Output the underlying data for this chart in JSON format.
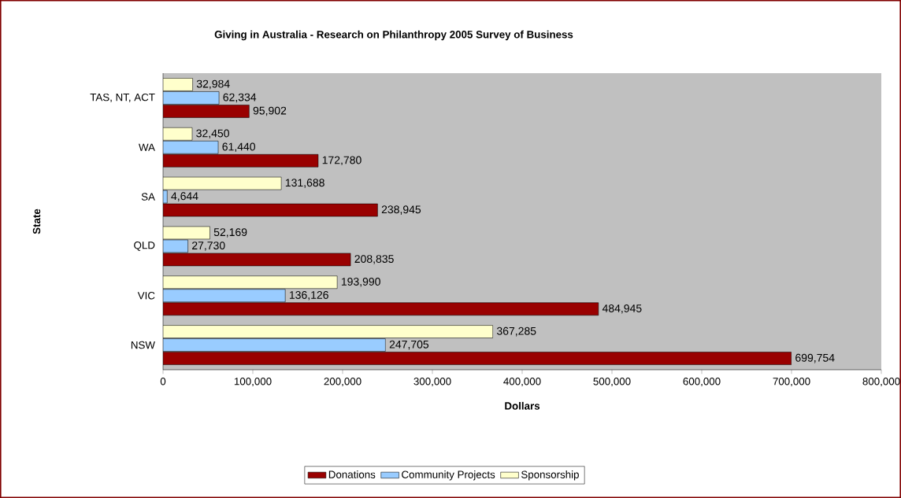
{
  "chart_data": {
    "type": "bar",
    "orientation": "horizontal",
    "title": "Giving in Australia - Research on Philanthropy 2005 Survey of Business",
    "xlabel": "Dollars",
    "ylabel": "State",
    "categories": [
      "TAS, NT, ACT",
      "WA",
      "SA",
      "QLD",
      "VIC",
      "NSW"
    ],
    "series": [
      {
        "name": "Donations",
        "color": "#990000",
        "values": [
          95902,
          172780,
          238945,
          208835,
          484945,
          699754
        ],
        "value_labels": [
          "95,902",
          "172,780",
          "238,945",
          "208,835",
          "484,945",
          "699,754"
        ]
      },
      {
        "name": "Community Projects",
        "color": "#99ccff",
        "values": [
          62334,
          61440,
          4644,
          27730,
          136126,
          247705
        ],
        "value_labels": [
          "62,334",
          "61,440",
          "4,644",
          "27,730",
          "136,126",
          "247,705"
        ]
      },
      {
        "name": "Sponsorship",
        "color": "#ffffcc",
        "values": [
          32984,
          32450,
          131688,
          52169,
          193990,
          367285
        ],
        "value_labels": [
          "32,984",
          "32,450",
          "131,688",
          "52,169",
          "193,990",
          "367,285"
        ]
      }
    ],
    "xlim": [
      0,
      800000
    ],
    "xticks": [
      0,
      {
        "value": 100000,
        "label": "100,000"
      },
      {
        "value": 200000,
        "label": "200,000"
      },
      {
        "value": 300000,
        "label": "300,000"
      },
      {
        "value": 400000,
        "label": "400,000"
      },
      {
        "value": 500000,
        "label": "500,000"
      },
      {
        "value": 600000,
        "label": "600,000"
      },
      {
        "value": 700000,
        "label": "700,000"
      },
      {
        "value": 800000,
        "label": "800,000"
      }
    ],
    "legend": "bottom"
  }
}
